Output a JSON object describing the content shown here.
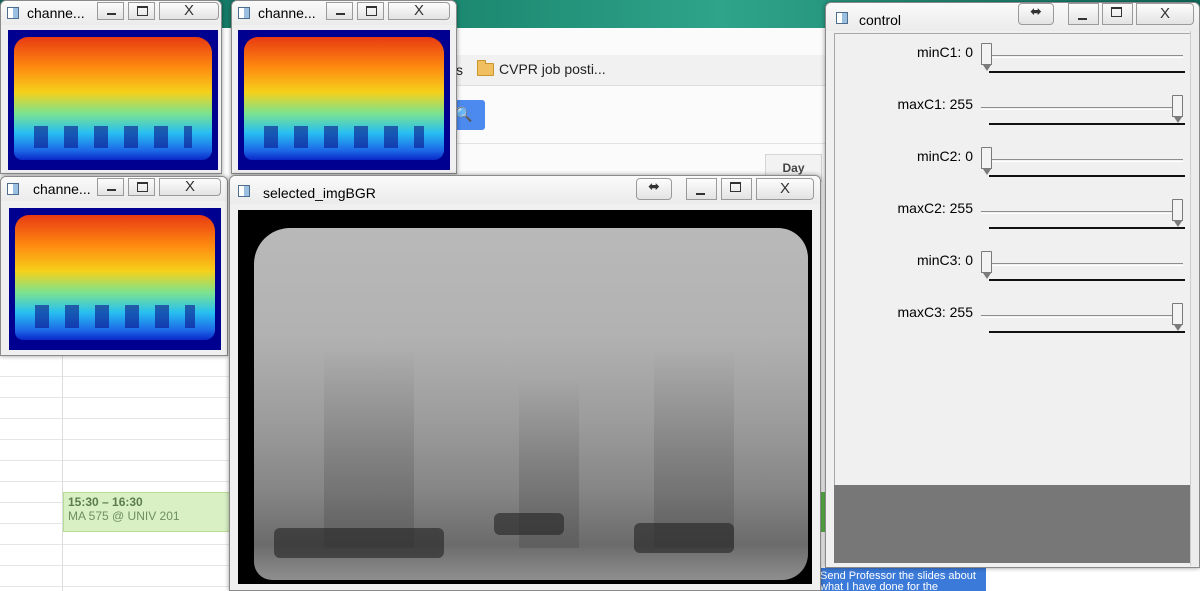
{
  "background": {
    "bookmark_tail": "s",
    "bookmark": "CVPR job posti...",
    "day_button": "Day",
    "event": {
      "time": "15:30 – 16:30",
      "title": "MA 575 @ UNIV 201"
    },
    "task": "Send Professor the slides about what I have done for the"
  },
  "windows": [
    {
      "title": "channe...",
      "id": "w1"
    },
    {
      "title": "channe...",
      "id": "w2"
    },
    {
      "title": "channe...",
      "id": "w3"
    }
  ],
  "image_window": {
    "title": "selected_imgBGR"
  },
  "control": {
    "title": "control",
    "resize_glyph": "⬌",
    "close_glyph": "X",
    "trackbars": [
      {
        "label": "minC1: 0",
        "value": 0,
        "max": 255
      },
      {
        "label": "maxC1: 255",
        "value": 255,
        "max": 255
      },
      {
        "label": "minC2: 0",
        "value": 0,
        "max": 255
      },
      {
        "label": "maxC2: 255",
        "value": 255,
        "max": 255
      },
      {
        "label": "minC3: 0",
        "value": 0,
        "max": 255
      },
      {
        "label": "maxC3: 255",
        "value": 255,
        "max": 255
      }
    ]
  }
}
